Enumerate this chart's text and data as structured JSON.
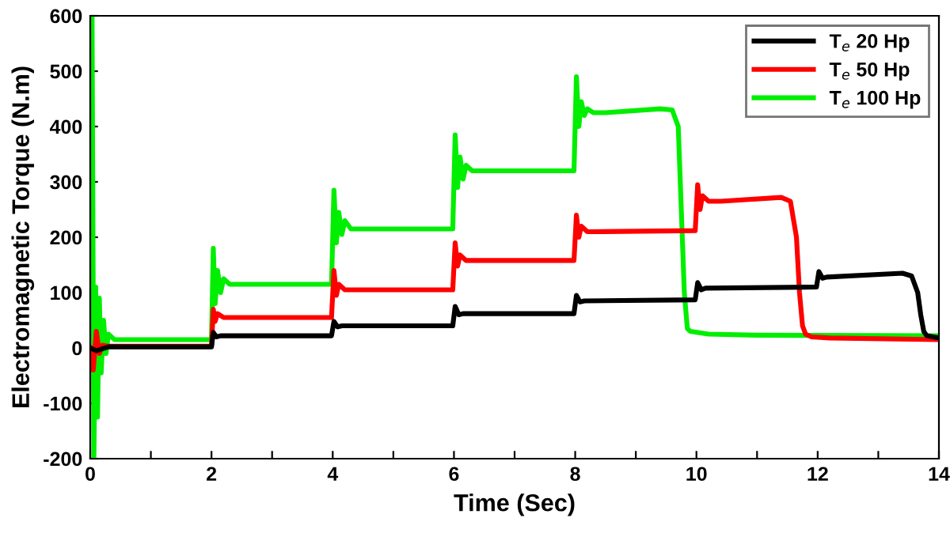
{
  "chart_data": {
    "type": "line",
    "xlabel": "Time (Sec)",
    "ylabel": "Electromagnetic Torque (N.m)",
    "xlim": [
      0,
      14
    ],
    "ylim": [
      -200,
      600
    ],
    "xticks": [
      0,
      {
        "value": 1,
        "label": null
      },
      2,
      {
        "value": 3,
        "label": null
      },
      4,
      {
        "value": 5,
        "label": null
      },
      6,
      {
        "value": 7,
        "label": null
      },
      8,
      {
        "value": 9,
        "label": null
      },
      10,
      {
        "value": 11,
        "label": null
      },
      12,
      {
        "value": 13,
        "label": null
      },
      14
    ],
    "yticks": [
      -200,
      -100,
      0,
      100,
      200,
      300,
      400,
      500,
      600
    ],
    "grid": false,
    "legend": "top right",
    "line_style": "solid",
    "marker": "none",
    "series": [
      {
        "name": "T$_{e}$ 100 Hp",
        "color": "#00ee00",
        "x": [
          0,
          0.03,
          0.06,
          0.09,
          0.12,
          0.15,
          0.18,
          0.22,
          0.26,
          0.3,
          0.4,
          0.6,
          2.0,
          2.03,
          2.06,
          2.1,
          2.15,
          2.2,
          2.3,
          2.5,
          3.98,
          4.02,
          4.06,
          4.1,
          4.15,
          4.2,
          4.3,
          4.5,
          5.98,
          6.02,
          6.06,
          6.1,
          6.15,
          6.2,
          6.3,
          6.5,
          7.98,
          8.02,
          8.06,
          8.1,
          8.15,
          8.2,
          8.3,
          8.5,
          9.4,
          9.6,
          9.7,
          9.75,
          9.8,
          9.85,
          9.9,
          10.2,
          11,
          14
        ],
        "values": [
          0,
          600,
          -200,
          110,
          -125,
          90,
          -45,
          50,
          -10,
          25,
          15,
          15,
          15,
          180,
          80,
          140,
          100,
          125,
          115,
          115,
          115,
          285,
          190,
          245,
          205,
          230,
          215,
          215,
          215,
          385,
          290,
          345,
          305,
          330,
          320,
          320,
          320,
          490,
          400,
          445,
          420,
          432,
          425,
          425,
          432,
          430,
          400,
          250,
          100,
          35,
          30,
          25,
          23,
          22
        ]
      },
      {
        "name": "T$_{e}$ 50 Hp",
        "color": "#ff0000",
        "x": [
          0,
          0.05,
          0.1,
          0.15,
          0.2,
          0.3,
          2.0,
          2.03,
          2.06,
          2.1,
          2.2,
          2.3,
          3.98,
          4.02,
          4.06,
          4.1,
          4.2,
          4.3,
          5.98,
          6.02,
          6.06,
          6.1,
          6.2,
          6.3,
          7.98,
          8.02,
          8.06,
          8.1,
          8.2,
          8.3,
          9.98,
          10.02,
          10.06,
          10.1,
          10.2,
          10.4,
          11.4,
          11.55,
          11.65,
          11.7,
          11.75,
          11.8,
          11.9,
          12.2,
          14
        ],
        "values": [
          0,
          -40,
          30,
          -10,
          5,
          3,
          3,
          70,
          48,
          62,
          55,
          55,
          55,
          140,
          95,
          115,
          105,
          105,
          105,
          190,
          148,
          168,
          158,
          158,
          158,
          240,
          200,
          220,
          210,
          210,
          212,
          295,
          250,
          275,
          265,
          265,
          272,
          265,
          200,
          100,
          40,
          25,
          20,
          18,
          15
        ]
      },
      {
        "name": "T$_{e}$ 20 Hp",
        "color": "#000000",
        "x": [
          0,
          0.1,
          0.3,
          2.0,
          2.03,
          2.08,
          2.15,
          3.98,
          4.02,
          4.08,
          4.15,
          5.98,
          6.02,
          6.08,
          6.15,
          7.98,
          8.02,
          8.08,
          8.15,
          9.98,
          10.02,
          10.08,
          10.15,
          11.98,
          12.02,
          12.08,
          12.15,
          13.4,
          13.55,
          13.65,
          13.7,
          13.75,
          13.8,
          14
        ],
        "values": [
          0,
          -5,
          2,
          2,
          28,
          20,
          22,
          22,
          48,
          38,
          40,
          40,
          75,
          60,
          62,
          62,
          95,
          83,
          85,
          87,
          118,
          105,
          108,
          110,
          138,
          126,
          128,
          135,
          130,
          100,
          60,
          30,
          22,
          18
        ]
      }
    ]
  }
}
